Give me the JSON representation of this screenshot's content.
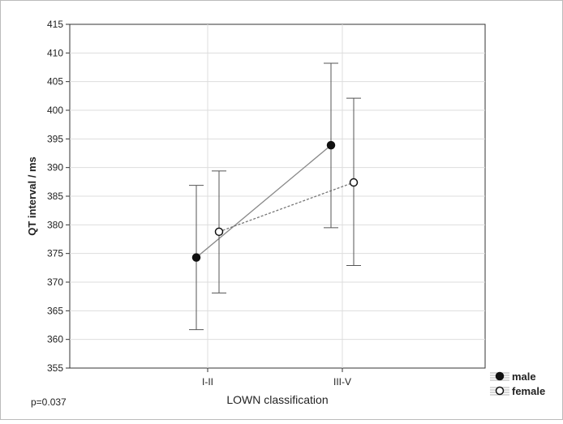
{
  "chart_data": {
    "type": "line",
    "categories": [
      "I-II",
      "III-V"
    ],
    "xlabel": "LOWN classification",
    "ylabel": "QT interval / ms",
    "ylim": [
      355,
      415
    ],
    "yticks": [
      355,
      360,
      365,
      370,
      375,
      380,
      385,
      390,
      395,
      400,
      405,
      410,
      415
    ],
    "grid": true,
    "legend_position": "bottom-right",
    "series": [
      {
        "name": "male",
        "marker": "filled-circle",
        "line": "solid",
        "color": "#888888",
        "values": [
          374.3,
          393.9
        ],
        "error_low": [
          361.7,
          379.5
        ],
        "error_high": [
          386.9,
          408.2
        ]
      },
      {
        "name": "female",
        "marker": "open-circle",
        "line": "dashed",
        "color": "#777777",
        "values": [
          378.8,
          387.4
        ],
        "error_low": [
          368.1,
          372.9
        ],
        "error_high": [
          389.4,
          402.1
        ]
      }
    ],
    "annotation": "p=0.037"
  }
}
